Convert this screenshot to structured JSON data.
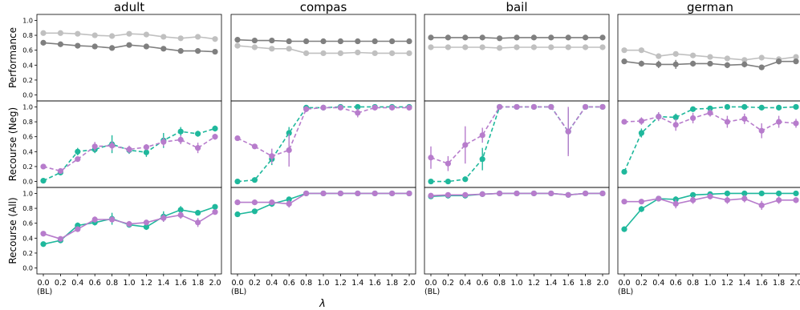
{
  "chart_data": {
    "type": "line",
    "x": [
      0.0,
      0.2,
      0.4,
      0.6,
      0.8,
      1.0,
      1.2,
      1.4,
      1.6,
      1.8,
      2.0
    ],
    "x_tick_labels": [
      "0.0",
      "0.2",
      "0.4",
      "0.6",
      "0.8",
      "1.0",
      "1.2",
      "1.4",
      "1.6",
      "1.8",
      "2.0"
    ],
    "baseline_note": "(BL)",
    "xlabel": "λ",
    "columns": [
      "adult",
      "compas",
      "bail",
      "german"
    ],
    "rows": [
      "Performance",
      "Recourse (Neg)",
      "Recourse (All)"
    ],
    "ylim": [
      -0.08,
      1.08
    ],
    "y_ticks": [
      0.0,
      0.2,
      0.4,
      0.6,
      0.8,
      1.0
    ],
    "y_tick_labels": [
      "0.0",
      "0.2",
      "0.4",
      "0.6",
      "0.8",
      "1.0"
    ],
    "grid": false,
    "colors": {
      "dark_gray": "#7f7f7f",
      "light_gray": "#c0c0c0",
      "teal": "#1fb89c",
      "purple": "#b77ccc"
    },
    "panels": {
      "adult": {
        "Performance": [
          {
            "color": "light_gray",
            "dash": false,
            "values": [
              0.83,
              0.83,
              0.82,
              0.8,
              0.79,
              0.82,
              0.81,
              0.78,
              0.76,
              0.78,
              0.75
            ]
          },
          {
            "color": "dark_gray",
            "dash": false,
            "values": [
              0.7,
              0.68,
              0.66,
              0.65,
              0.63,
              0.67,
              0.65,
              0.62,
              0.59,
              0.59,
              0.58
            ]
          }
        ],
        "Recourse (Neg)": [
          {
            "color": "teal",
            "dash": true,
            "values": [
              0.01,
              0.12,
              0.4,
              0.43,
              0.5,
              0.42,
              0.39,
              0.55,
              0.67,
              0.64,
              0.71
            ],
            "err": [
              0.02,
              0.03,
              0.05,
              0.05,
              0.12,
              0.05,
              0.06,
              0.1,
              0.06,
              0.04,
              0.04
            ]
          },
          {
            "color": "purple",
            "dash": true,
            "values": [
              0.2,
              0.14,
              0.3,
              0.47,
              0.48,
              0.43,
              0.46,
              0.53,
              0.56,
              0.45,
              0.6
            ],
            "err": [
              0.02,
              0.03,
              0.03,
              0.06,
              0.06,
              0.05,
              0.04,
              0.06,
              0.06,
              0.07,
              0.04
            ]
          }
        ],
        "Recourse (All)": [
          {
            "color": "teal",
            "dash": false,
            "values": [
              0.32,
              0.37,
              0.57,
              0.61,
              0.66,
              0.58,
              0.55,
              0.69,
              0.78,
              0.74,
              0.82
            ],
            "err": [
              0.02,
              0.03,
              0.04,
              0.04,
              0.08,
              0.04,
              0.04,
              0.07,
              0.05,
              0.03,
              0.03
            ]
          },
          {
            "color": "purple",
            "dash": false,
            "values": [
              0.46,
              0.39,
              0.52,
              0.65,
              0.65,
              0.59,
              0.61,
              0.67,
              0.71,
              0.61,
              0.75
            ],
            "err": [
              0.02,
              0.03,
              0.03,
              0.04,
              0.04,
              0.04,
              0.03,
              0.05,
              0.05,
              0.06,
              0.03
            ]
          }
        ]
      },
      "compas": {
        "Performance": [
          {
            "color": "dark_gray",
            "dash": false,
            "values": [
              0.74,
              0.73,
              0.73,
              0.72,
              0.72,
              0.72,
              0.72,
              0.72,
              0.72,
              0.72,
              0.72
            ]
          },
          {
            "color": "light_gray",
            "dash": false,
            "values": [
              0.66,
              0.64,
              0.62,
              0.62,
              0.56,
              0.56,
              0.56,
              0.57,
              0.56,
              0.56,
              0.56
            ]
          }
        ],
        "Recourse (Neg)": [
          {
            "color": "teal",
            "dash": true,
            "values": [
              0.0,
              0.02,
              0.3,
              0.65,
              0.99,
              0.99,
              1.0,
              1.0,
              1.0,
              1.0,
              1.0
            ],
            "err": [
              0.01,
              0.02,
              0.08,
              0.08,
              0.02,
              0.01,
              0.01,
              0.01,
              0.01,
              0.01,
              0.01
            ]
          },
          {
            "color": "purple",
            "dash": true,
            "values": [
              0.58,
              0.47,
              0.34,
              0.42,
              0.97,
              0.99,
              0.99,
              0.92,
              0.99,
              0.99,
              0.99
            ],
            "err": [
              0.02,
              0.02,
              0.1,
              0.22,
              0.04,
              0.01,
              0.02,
              0.06,
              0.02,
              0.01,
              0.01
            ]
          }
        ],
        "Recourse (All)": [
          {
            "color": "teal",
            "dash": false,
            "values": [
              0.72,
              0.76,
              0.86,
              0.92,
              1.0,
              1.0,
              1.0,
              1.0,
              1.0,
              1.0,
              1.0
            ],
            "err": [
              0.02,
              0.02,
              0.04,
              0.03,
              0.01,
              0.01,
              0.01,
              0.01,
              0.01,
              0.01,
              0.01
            ]
          },
          {
            "color": "purple",
            "dash": false,
            "values": [
              0.88,
              0.88,
              0.88,
              0.86,
              1.0,
              1.0,
              1.0,
              1.0,
              1.0,
              1.0,
              1.0
            ],
            "err": [
              0.02,
              0.02,
              0.03,
              0.05,
              0.01,
              0.01,
              0.01,
              0.01,
              0.01,
              0.01,
              0.01
            ]
          }
        ]
      },
      "bail": {
        "Performance": [
          {
            "color": "dark_gray",
            "dash": false,
            "values": [
              0.77,
              0.77,
              0.77,
              0.77,
              0.76,
              0.77,
              0.77,
              0.77,
              0.77,
              0.77,
              0.77
            ]
          },
          {
            "color": "light_gray",
            "dash": false,
            "values": [
              0.64,
              0.64,
              0.64,
              0.64,
              0.63,
              0.64,
              0.64,
              0.64,
              0.64,
              0.64,
              0.64
            ]
          }
        ],
        "Recourse (Neg)": [
          {
            "color": "teal",
            "dash": true,
            "values": [
              0.0,
              0.0,
              0.03,
              0.3,
              1.0,
              1.0,
              1.0,
              1.0,
              0.67,
              1.0,
              1.0
            ],
            "err": [
              0.01,
              0.01,
              0.03,
              0.15,
              0.01,
              0.01,
              0.01,
              0.01,
              0.3,
              0.01,
              0.01
            ]
          },
          {
            "color": "purple",
            "dash": true,
            "values": [
              0.32,
              0.24,
              0.49,
              0.62,
              1.0,
              1.0,
              1.0,
              1.0,
              0.67,
              1.0,
              1.0
            ],
            "err": [
              0.15,
              0.1,
              0.25,
              0.1,
              0.01,
              0.01,
              0.01,
              0.01,
              0.33,
              0.01,
              0.01
            ]
          }
        ],
        "Recourse (All)": [
          {
            "color": "teal",
            "dash": false,
            "values": [
              0.96,
              0.97,
              0.97,
              0.99,
              1.0,
              1.0,
              1.0,
              1.0,
              0.98,
              1.0,
              1.0
            ],
            "err": [
              0.01,
              0.01,
              0.01,
              0.01,
              0.01,
              0.01,
              0.01,
              0.01,
              0.01,
              0.01,
              0.01
            ]
          },
          {
            "color": "purple",
            "dash": false,
            "values": [
              0.97,
              0.98,
              0.98,
              0.99,
              1.0,
              1.0,
              1.0,
              1.0,
              0.98,
              1.0,
              1.0
            ],
            "err": [
              0.02,
              0.01,
              0.02,
              0.01,
              0.01,
              0.01,
              0.01,
              0.01,
              0.01,
              0.01,
              0.01
            ]
          }
        ]
      },
      "german": {
        "Performance": [
          {
            "color": "light_gray",
            "dash": false,
            "values": [
              0.6,
              0.6,
              0.52,
              0.55,
              0.53,
              0.51,
              0.49,
              0.47,
              0.5,
              0.48,
              0.51
            ]
          },
          {
            "color": "dark_gray",
            "dash": false,
            "values": [
              0.45,
              0.42,
              0.41,
              0.41,
              0.42,
              0.42,
              0.4,
              0.41,
              0.37,
              0.45,
              0.45
            ],
            "err": [
              0.02,
              0.04,
              0.05,
              0.06,
              0.04,
              0.03,
              0.04,
              0.04,
              0.03,
              0.04,
              0.03
            ]
          }
        ],
        "Recourse (Neg)": [
          {
            "color": "teal",
            "dash": true,
            "values": [
              0.13,
              0.65,
              0.87,
              0.86,
              0.97,
              0.98,
              1.0,
              1.0,
              0.99,
              0.99,
              1.0
            ],
            "err": [
              0.02,
              0.06,
              0.05,
              0.05,
              0.03,
              0.02,
              0.01,
              0.01,
              0.01,
              0.01,
              0.01
            ]
          },
          {
            "color": "purple",
            "dash": true,
            "values": [
              0.8,
              0.81,
              0.87,
              0.76,
              0.85,
              0.92,
              0.8,
              0.84,
              0.68,
              0.8,
              0.78
            ],
            "err": [
              0.03,
              0.05,
              0.06,
              0.08,
              0.07,
              0.05,
              0.08,
              0.07,
              0.1,
              0.08,
              0.06
            ]
          }
        ],
        "Recourse (All)": [
          {
            "color": "teal",
            "dash": false,
            "values": [
              0.52,
              0.79,
              0.93,
              0.92,
              0.98,
              0.99,
              1.0,
              1.0,
              1.0,
              1.0,
              1.0
            ],
            "err": [
              0.02,
              0.04,
              0.03,
              0.04,
              0.02,
              0.01,
              0.01,
              0.01,
              0.01,
              0.01,
              0.01
            ]
          },
          {
            "color": "purple",
            "dash": false,
            "values": [
              0.89,
              0.89,
              0.93,
              0.86,
              0.91,
              0.96,
              0.91,
              0.93,
              0.84,
              0.91,
              0.91
            ],
            "err": [
              0.02,
              0.03,
              0.03,
              0.06,
              0.05,
              0.04,
              0.05,
              0.05,
              0.06,
              0.05,
              0.04
            ]
          }
        ]
      }
    }
  }
}
